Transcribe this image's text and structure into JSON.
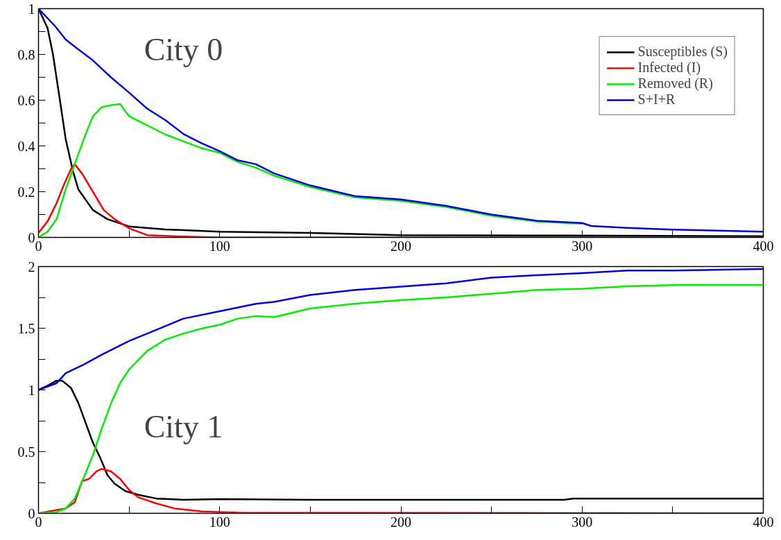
{
  "chart_data": [
    {
      "type": "line",
      "annotations": [
        "City 0"
      ],
      "xlim": [
        0,
        400
      ],
      "ylim": [
        0,
        1
      ],
      "xticks": [
        0,
        {
          "value": 50,
          "label": null
        },
        100,
        {
          "value": 150,
          "label": null
        },
        200,
        {
          "value": 250,
          "label": null
        },
        300,
        {
          "value": 350,
          "label": null
        },
        400
      ],
      "yticks": [
        0,
        {
          "value": 0.1,
          "label": null
        },
        0.2,
        {
          "value": 0.3,
          "label": null
        },
        0.4,
        {
          "value": 0.5,
          "label": null
        },
        0.6,
        {
          "value": 0.7,
          "label": null
        },
        0.8,
        {
          "value": 0.9,
          "label": null
        },
        1
      ],
      "grid": false,
      "legend": "top right",
      "line_style": "solid",
      "marker": "none",
      "series": [
        {
          "name": "Susceptibles (S)",
          "color": "#000000",
          "x": [
            0,
            5,
            8,
            12,
            15,
            19,
            22,
            30,
            38,
            50,
            70,
            100,
            150,
            200,
            290,
            400
          ],
          "values": [
            1,
            0.915,
            0.8,
            0.59,
            0.43,
            0.29,
            0.21,
            0.12,
            0.08,
            0.048,
            0.035,
            0.025,
            0.02,
            0.01,
            0.008,
            0.005
          ]
        },
        {
          "name": "Infected (I)",
          "color": "#ff0000",
          "x": [
            0,
            5,
            10,
            14,
            18,
            20,
            24,
            30,
            36,
            42,
            50,
            60,
            75,
            100,
            400
          ],
          "values": [
            0.02,
            0.07,
            0.15,
            0.23,
            0.3,
            0.32,
            0.28,
            0.2,
            0.12,
            0.08,
            0.04,
            0.01,
            0.005,
            0,
            0
          ]
        },
        {
          "name": "Removed (R)",
          "color": "#00ee00",
          "x": [
            0,
            5,
            10,
            15,
            20,
            25,
            30,
            35,
            40,
            45,
            50,
            60,
            70,
            80,
            90,
            100,
            110,
            120,
            130,
            150,
            175,
            200,
            225,
            250,
            275,
            300
          ],
          "values": [
            0,
            0.025,
            0.08,
            0.21,
            0.32,
            0.43,
            0.53,
            0.57,
            0.578,
            0.583,
            0.53,
            0.49,
            0.45,
            0.42,
            0.39,
            0.37,
            0.33,
            0.305,
            0.27,
            0.22,
            0.175,
            0.16,
            0.133,
            0.095,
            0.07,
            0.06
          ]
        },
        {
          "name": "S+I+R",
          "color": "#0000dd",
          "x": [
            0,
            9,
            15,
            20,
            30,
            40,
            50,
            60,
            70,
            80,
            90,
            100,
            110,
            120,
            130,
            150,
            175,
            200,
            225,
            250,
            275,
            300,
            305,
            325,
            350,
            400
          ],
          "values": [
            1,
            0.925,
            0.865,
            0.834,
            0.774,
            0.7,
            0.633,
            0.563,
            0.513,
            0.452,
            0.412,
            0.377,
            0.337,
            0.32,
            0.28,
            0.227,
            0.18,
            0.166,
            0.138,
            0.1,
            0.073,
            0.063,
            0.05,
            0.042,
            0.034,
            0.025
          ]
        }
      ]
    },
    {
      "type": "line",
      "annotations": [
        "City 1"
      ],
      "xlim": [
        0,
        400
      ],
      "ylim": [
        0,
        2
      ],
      "xticks": [
        0,
        {
          "value": 50,
          "label": null
        },
        100,
        {
          "value": 150,
          "label": null
        },
        200,
        {
          "value": 250,
          "label": null
        },
        300,
        {
          "value": 350,
          "label": null
        },
        400
      ],
      "yticks": [
        0,
        {
          "value": 0.25,
          "label": null
        },
        0.5,
        {
          "value": 0.75,
          "label": null
        },
        1,
        {
          "value": 1.25,
          "label": null
        },
        1.5,
        {
          "value": 1.75,
          "label": null
        },
        2
      ],
      "grid": false,
      "line_style": "solid",
      "marker": "none",
      "series": [
        {
          "color": "#000000",
          "x": [
            0,
            5,
            10,
            13,
            18,
            22,
            26,
            30,
            34,
            38,
            42,
            48,
            55,
            65,
            80,
            100,
            150,
            290,
            295,
            400
          ],
          "values": [
            1,
            1.035,
            1.075,
            1.075,
            1.015,
            0.894,
            0.734,
            0.573,
            0.452,
            0.31,
            0.24,
            0.18,
            0.15,
            0.12,
            0.11,
            0.115,
            0.11,
            0.11,
            0.12,
            0.12
          ]
        },
        {
          "color": "#ff0000",
          "x": [
            0,
            15,
            20,
            24,
            28,
            32,
            35,
            40,
            45,
            50,
            55,
            65,
            75,
            90,
            110,
            400
          ],
          "values": [
            0,
            0.04,
            0.09,
            0.26,
            0.28,
            0.34,
            0.36,
            0.34,
            0.28,
            0.19,
            0.13,
            0.08,
            0.04,
            0.016,
            0.005,
            0
          ]
        },
        {
          "color": "#00ee00",
          "x": [
            0,
            10,
            15,
            20,
            25,
            30,
            35,
            40,
            45,
            50,
            60,
            70,
            80,
            90,
            100,
            110,
            120,
            130,
            150,
            175,
            200,
            225,
            250,
            275,
            300,
            325,
            350,
            400
          ],
          "values": [
            0,
            0.01,
            0.04,
            0.12,
            0.29,
            0.47,
            0.69,
            0.89,
            1.055,
            1.166,
            1.317,
            1.407,
            1.457,
            1.497,
            1.528,
            1.578,
            1.598,
            1.59,
            1.66,
            1.7,
            1.727,
            1.75,
            1.78,
            1.81,
            1.82,
            1.84,
            1.85,
            1.85
          ]
        },
        {
          "color": "#0000dd",
          "x": [
            0,
            10,
            15,
            25,
            35,
            50,
            65,
            80,
            100,
            120,
            130,
            150,
            175,
            200,
            225,
            250,
            275,
            300,
            325,
            350,
            400
          ],
          "values": [
            1,
            1.055,
            1.136,
            1.206,
            1.286,
            1.397,
            1.487,
            1.578,
            1.638,
            1.698,
            1.714,
            1.77,
            1.81,
            1.837,
            1.864,
            1.91,
            1.93,
            1.946,
            1.968,
            1.968,
            1.98
          ]
        }
      ]
    }
  ]
}
